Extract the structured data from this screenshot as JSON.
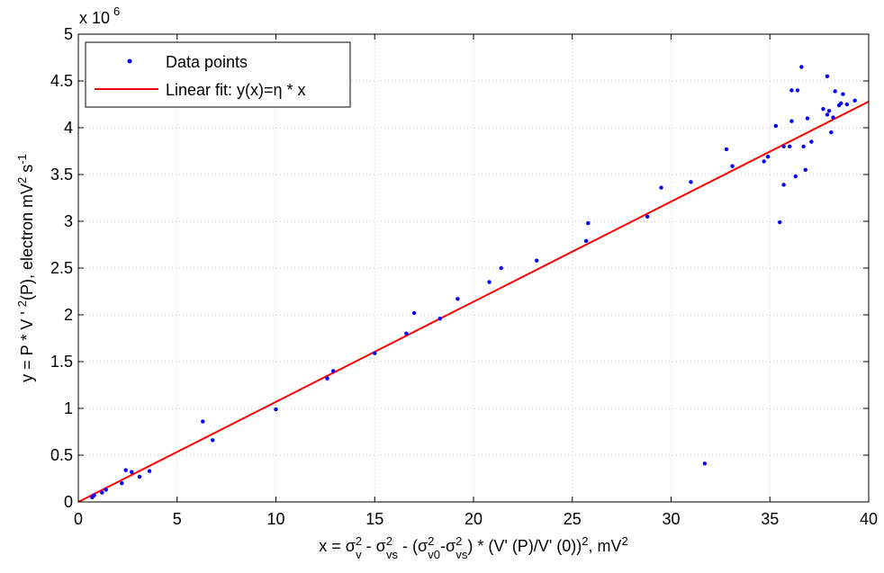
{
  "chart_data": {
    "type": "scatter",
    "title": "",
    "xlim": [
      0,
      40
    ],
    "ylim": [
      0,
      5
    ],
    "y_multiplier_label": "x 10",
    "y_multiplier_exp": "6",
    "grid": true,
    "legend_position": "top-left",
    "xticks": [
      "0",
      "5",
      "10",
      "15",
      "20",
      "25",
      "30",
      "35",
      "40"
    ],
    "yticks": [
      "0",
      "0.5",
      "1",
      "1.5",
      "2",
      "2.5",
      "3",
      "3.5",
      "4",
      "4.5",
      "5"
    ],
    "series": [
      {
        "name": "Data points",
        "kind": "markers",
        "color": "#0000ff",
        "points": [
          [
            0.7,
            0.05
          ],
          [
            0.8,
            0.07
          ],
          [
            1.2,
            0.1
          ],
          [
            1.4,
            0.13
          ],
          [
            2.2,
            0.2
          ],
          [
            2.4,
            0.34
          ],
          [
            2.7,
            0.32
          ],
          [
            3.1,
            0.27
          ],
          [
            3.6,
            0.33
          ],
          [
            6.3,
            0.86
          ],
          [
            6.8,
            0.66
          ],
          [
            10.0,
            0.99
          ],
          [
            12.6,
            1.32
          ],
          [
            12.9,
            1.4
          ],
          [
            15.0,
            1.59
          ],
          [
            16.6,
            1.8
          ],
          [
            17.0,
            2.02
          ],
          [
            18.3,
            1.96
          ],
          [
            19.2,
            2.17
          ],
          [
            20.8,
            2.35
          ],
          [
            21.4,
            2.5
          ],
          [
            23.2,
            2.58
          ],
          [
            25.7,
            2.79
          ],
          [
            25.8,
            2.98
          ],
          [
            28.8,
            3.05
          ],
          [
            29.5,
            3.36
          ],
          [
            31.0,
            3.42
          ],
          [
            31.7,
            0.41
          ],
          [
            32.8,
            3.77
          ],
          [
            33.1,
            3.59
          ],
          [
            34.7,
            3.64
          ],
          [
            34.9,
            3.69
          ],
          [
            35.3,
            4.02
          ],
          [
            35.5,
            2.99
          ],
          [
            35.7,
            3.39
          ],
          [
            35.7,
            3.8
          ],
          [
            36.0,
            3.8
          ],
          [
            36.1,
            4.07
          ],
          [
            36.1,
            4.4
          ],
          [
            36.3,
            3.48
          ],
          [
            36.4,
            4.4
          ],
          [
            36.6,
            4.65
          ],
          [
            36.7,
            3.8
          ],
          [
            36.8,
            3.55
          ],
          [
            36.9,
            4.1
          ],
          [
            37.1,
            3.85
          ],
          [
            37.7,
            4.2
          ],
          [
            37.9,
            4.55
          ],
          [
            37.9,
            4.14
          ],
          [
            38.0,
            4.18
          ],
          [
            38.1,
            3.95
          ],
          [
            38.2,
            4.11
          ],
          [
            38.3,
            4.39
          ],
          [
            38.5,
            4.24
          ],
          [
            38.6,
            4.26
          ],
          [
            38.7,
            4.36
          ],
          [
            38.9,
            4.25
          ],
          [
            39.3,
            4.29
          ]
        ]
      },
      {
        "name": "Linear fit: y(x)=η * x",
        "kind": "line",
        "color": "#ff0000",
        "points": [
          [
            0,
            0
          ],
          [
            40,
            4.28
          ]
        ]
      }
    ]
  }
}
